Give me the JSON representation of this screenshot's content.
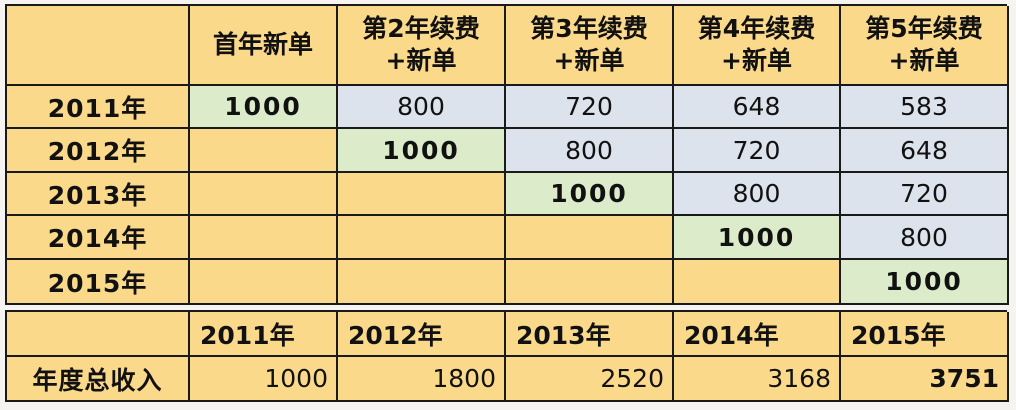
{
  "top": {
    "corner": "",
    "headers": [
      [
        "首年新单",
        ""
      ],
      [
        "第2年续费",
        "+新单"
      ],
      [
        "第3年续费",
        "+新单"
      ],
      [
        "第4年续费",
        "+新单"
      ],
      [
        "第5年续费",
        "+新单"
      ]
    ],
    "rows": [
      {
        "label": "2011年",
        "cells": [
          "1000",
          "800",
          "720",
          "648",
          "583"
        ]
      },
      {
        "label": "2012年",
        "cells": [
          "",
          "1000",
          "800",
          "720",
          "648"
        ]
      },
      {
        "label": "2013年",
        "cells": [
          "",
          "",
          "1000",
          "800",
          "720"
        ]
      },
      {
        "label": "2014年",
        "cells": [
          "",
          "",
          "",
          "1000",
          "800"
        ]
      },
      {
        "label": "2015年",
        "cells": [
          "",
          "",
          "",
          "",
          "1000"
        ]
      }
    ]
  },
  "bottom": {
    "corner": "",
    "years": [
      "2011年",
      "2012年",
      "2013年",
      "2014年",
      "2015年"
    ],
    "row_label": "年度总收入",
    "values": [
      "1000",
      "1800",
      "2520",
      "3168",
      "3751"
    ]
  },
  "colors": {
    "header_bg": "#fbd98a",
    "value_bg": "#dde3ec",
    "new_policy_bg": "#dcebc9",
    "border": "#1a1a1a"
  }
}
